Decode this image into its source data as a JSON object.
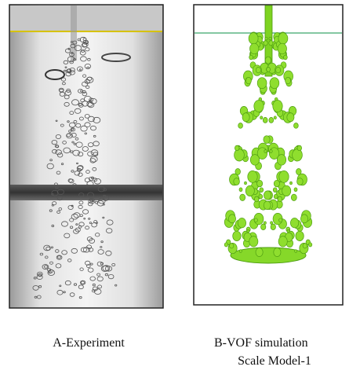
{
  "figure": {
    "panels": [
      {
        "caption": [
          "A-Experiment"
        ]
      },
      {
        "caption": [
          "B-VOF simulation",
          "Scale Model-1"
        ]
      }
    ]
  }
}
